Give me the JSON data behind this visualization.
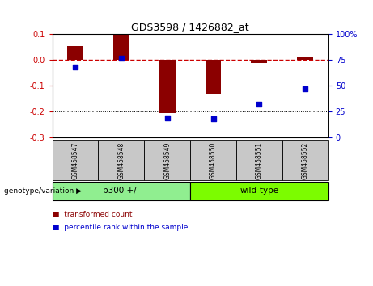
{
  "title": "GDS3598 / 1426882_at",
  "samples": [
    "GSM458547",
    "GSM458548",
    "GSM458549",
    "GSM458550",
    "GSM458551",
    "GSM458552"
  ],
  "bar_values": [
    0.055,
    0.097,
    -0.205,
    -0.13,
    -0.012,
    0.01
  ],
  "scatter_values": [
    68,
    77,
    19,
    18,
    32,
    47
  ],
  "bar_color": "#8B0000",
  "scatter_color": "#0000CD",
  "dashed_line_color": "#CC0000",
  "ylim_left": [
    -0.3,
    0.1
  ],
  "ylim_right": [
    0,
    100
  ],
  "yticks_left": [
    -0.3,
    -0.2,
    -0.1,
    0.0,
    0.1
  ],
  "ytick_labels_right": [
    "0",
    "25",
    "50",
    "75",
    "100%"
  ],
  "dotted_lines": [
    -0.1,
    -0.2
  ],
  "groups": [
    {
      "label": "p300 +/-",
      "indices": [
        0,
        2
      ],
      "color": "#90EE90"
    },
    {
      "label": "wild-type",
      "indices": [
        3,
        5
      ],
      "color": "#7CFC00"
    }
  ],
  "group_label": "genotype/variation",
  "legend_items": [
    {
      "label": "transformed count",
      "color": "#8B0000"
    },
    {
      "label": "percentile rank within the sample",
      "color": "#0000CD"
    }
  ],
  "background_color": "#FFFFFF",
  "label_box_color": "#C8C8C8",
  "bar_width": 0.35
}
